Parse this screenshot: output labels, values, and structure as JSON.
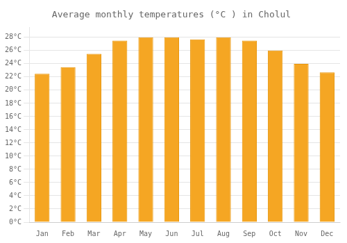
{
  "chart_data": {
    "type": "bar",
    "title": "Average monthly temperatures (°C ) in Cholul",
    "categories": [
      "Jan",
      "Feb",
      "Mar",
      "Apr",
      "May",
      "Jun",
      "Jul",
      "Aug",
      "Sep",
      "Oct",
      "Nov",
      "Dec"
    ],
    "values": [
      22.5,
      23.5,
      25.5,
      27.5,
      28.0,
      28.0,
      27.7,
      28.0,
      27.5,
      26.0,
      24.0,
      22.7
    ],
    "color": "#F5A623",
    "ylim": [
      0,
      29.5
    ],
    "yticks": [
      {
        "value": 0,
        "label": "0°C"
      },
      {
        "value": 2,
        "label": "2°C"
      },
      {
        "value": 4,
        "label": "4°C"
      },
      {
        "value": 6,
        "label": "6°C"
      },
      {
        "value": 8,
        "label": "8°C"
      },
      {
        "value": 10,
        "label": "10°C"
      },
      {
        "value": 12,
        "label": "12°C"
      },
      {
        "value": 14,
        "label": "14°C"
      },
      {
        "value": 16,
        "label": "16°C"
      },
      {
        "value": 18,
        "label": "18°C"
      },
      {
        "value": 20,
        "label": "20°C"
      },
      {
        "value": 22,
        "label": "22°C"
      },
      {
        "value": 24,
        "label": "24°C"
      },
      {
        "value": 26,
        "label": "26°C"
      },
      {
        "value": 28,
        "label": "28°C"
      }
    ],
    "grid": true
  }
}
